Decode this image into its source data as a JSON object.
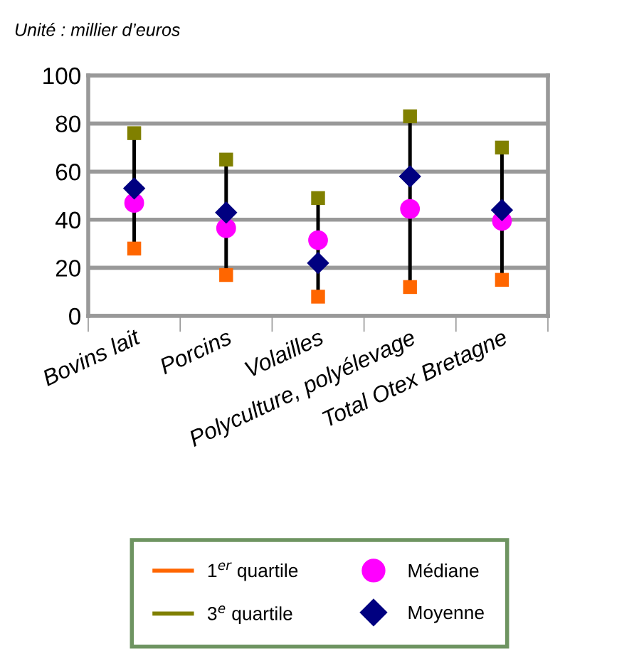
{
  "chart_data": {
    "type": "scatter",
    "annotations": [
      "Unité : millier d’euros"
    ],
    "categories": [
      "Bovins lait",
      "Porcins",
      "Volailles",
      "Polyculture, polyélevage",
      "Total Otex Bretagne"
    ],
    "series": [
      {
        "name": "1$^{er}$ quartile",
        "color": "#ff6600",
        "marker": "square",
        "values": [
          28,
          17,
          8,
          12,
          15
        ]
      },
      {
        "name": "3$^{e}$ quartile",
        "color": "#808000",
        "marker": "square",
        "values": [
          76,
          65,
          49,
          83,
          70
        ]
      },
      {
        "name": "Médiane",
        "color": "#ff00ff",
        "marker": "circle",
        "values": [
          47,
          36.5,
          31.5,
          44.5,
          39.5
        ]
      },
      {
        "name": "Moyenne",
        "color": "#000080",
        "marker": "diamond",
        "values": [
          53,
          43,
          22,
          58,
          44
        ]
      }
    ],
    "ylim": [
      0,
      100
    ],
    "yticks": [
      0,
      20,
      40,
      60,
      80,
      100
    ],
    "grid": "y",
    "legend": "bottom"
  }
}
